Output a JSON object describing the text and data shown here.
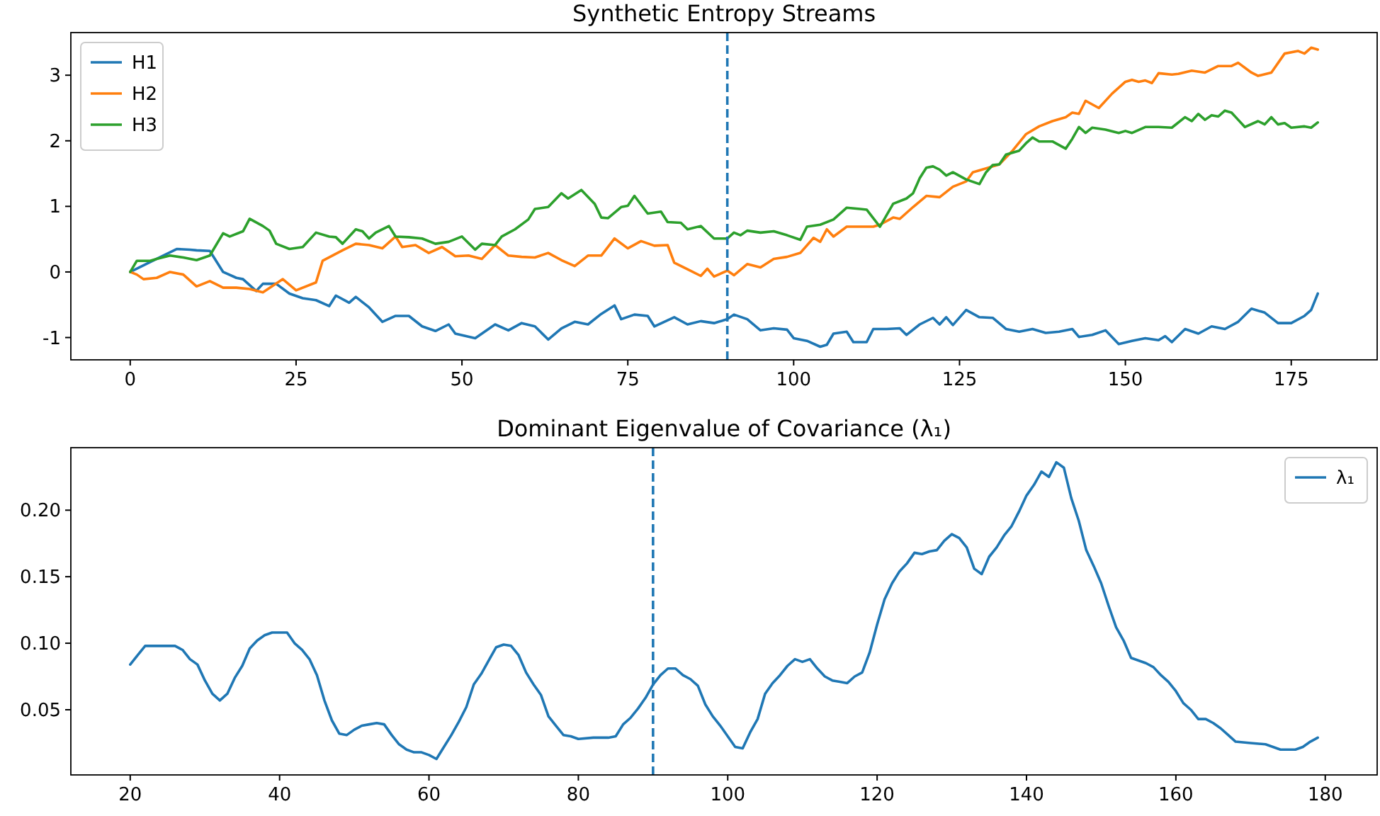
{
  "chart_data": [
    {
      "type": "line",
      "title": "Synthetic Entropy Streams",
      "xlim": [
        -8.95,
        187.95
      ],
      "ylim": [
        -1.34,
        3.65
      ],
      "xticks": [
        0,
        25,
        50,
        75,
        100,
        125,
        150,
        175
      ],
      "yticks": [
        -1,
        0,
        1,
        2,
        3
      ],
      "grid": false,
      "legend": "top left",
      "line_style": "solid",
      "marker": "none",
      "ref_lines": [
        {
          "axis": "x",
          "value": 90,
          "color": "#1f77b4",
          "line_style": "dashed"
        }
      ],
      "series": [
        {
          "name": "H1",
          "color": "#1f77b4",
          "x": [
            0,
            2,
            4,
            7,
            9,
            10,
            12,
            14,
            16,
            17,
            19,
            20,
            22,
            24,
            26,
            28,
            30,
            31,
            33,
            34,
            36,
            38,
            40,
            42,
            44,
            46,
            48,
            49,
            52,
            55,
            57,
            59,
            61,
            63,
            65,
            67,
            69,
            71,
            73,
            74,
            76,
            78,
            79,
            82,
            84,
            86,
            88,
            90,
            91,
            93,
            95,
            97,
            99,
            100,
            102,
            104,
            105,
            106,
            108,
            109,
            111,
            112,
            114,
            116,
            117,
            119,
            121,
            122,
            123,
            124,
            126,
            128,
            130,
            132,
            134,
            136,
            138,
            140,
            142,
            143,
            145,
            147,
            149,
            151,
            153,
            155,
            156,
            157,
            159,
            161,
            163,
            165,
            167,
            169,
            171,
            173,
            175,
            177,
            178,
            179
          ],
          "values": [
            0,
            0.1,
            0.2,
            0.35,
            0.34,
            0.33,
            0.32,
            0,
            -0.09,
            -0.11,
            -0.29,
            -0.18,
            -0.18,
            -0.33,
            -0.4,
            -0.43,
            -0.52,
            -0.36,
            -0.47,
            -0.38,
            -0.54,
            -0.76,
            -0.67,
            -0.67,
            -0.83,
            -0.9,
            -0.8,
            -0.94,
            -1.01,
            -0.8,
            -0.89,
            -0.78,
            -0.83,
            -1.03,
            -0.86,
            -0.76,
            -0.8,
            -0.64,
            -0.51,
            -0.72,
            -0.65,
            -0.67,
            -0.83,
            -0.69,
            -0.8,
            -0.75,
            -0.78,
            -0.72,
            -0.65,
            -0.72,
            -0.89,
            -0.86,
            -0.88,
            -1.01,
            -1.05,
            -1.14,
            -1.11,
            -0.94,
            -0.91,
            -1.07,
            -1.07,
            -0.87,
            -0.87,
            -0.86,
            -0.96,
            -0.8,
            -0.7,
            -0.8,
            -0.69,
            -0.81,
            -0.58,
            -0.69,
            -0.7,
            -0.87,
            -0.91,
            -0.87,
            -0.93,
            -0.91,
            -0.87,
            -0.99,
            -0.96,
            -0.89,
            -1.1,
            -1.05,
            -1.01,
            -1.04,
            -0.98,
            -1.07,
            -0.87,
            -0.94,
            -0.83,
            -0.87,
            -0.76,
            -0.56,
            -0.62,
            -0.78,
            -0.78,
            -0.67,
            -0.58,
            -0.33
          ]
        },
        {
          "name": "H2",
          "color": "#ff7f0e",
          "x": [
            0,
            1,
            2,
            4,
            6,
            8,
            10,
            12,
            14,
            16,
            18,
            20,
            23,
            25,
            28,
            29,
            32,
            34,
            36,
            38,
            40,
            41,
            43,
            45,
            47,
            49,
            51,
            53,
            55,
            57,
            59,
            61,
            63,
            65,
            67,
            69,
            71,
            73,
            75,
            77,
            79,
            81,
            82,
            84,
            86,
            87,
            88,
            90,
            91,
            93,
            95,
            97,
            99,
            101,
            103,
            104,
            105,
            106,
            108,
            110,
            112,
            113,
            115,
            116,
            118,
            120,
            122,
            124,
            126,
            127,
            129,
            131,
            133,
            135,
            137,
            139,
            141,
            142,
            143,
            144,
            146,
            148,
            150,
            151,
            152,
            153,
            154,
            155,
            157,
            158,
            160,
            162,
            164,
            166,
            167,
            169,
            170,
            172,
            174,
            176,
            177,
            178,
            179
          ],
          "values": [
            0,
            -0.04,
            -0.11,
            -0.09,
            0,
            -0.04,
            -0.22,
            -0.14,
            -0.24,
            -0.24,
            -0.26,
            -0.31,
            -0.11,
            -0.28,
            -0.16,
            0.17,
            0.33,
            0.43,
            0.41,
            0.36,
            0.54,
            0.38,
            0.41,
            0.29,
            0.38,
            0.24,
            0.25,
            0.2,
            0.41,
            0.25,
            0.23,
            0.22,
            0.29,
            0.18,
            0.09,
            0.25,
            0.25,
            0.51,
            0.36,
            0.47,
            0.4,
            0.41,
            0.14,
            0.04,
            -0.06,
            0.05,
            -0.07,
            0.02,
            -0.05,
            0.12,
            0.07,
            0.2,
            0.23,
            0.29,
            0.52,
            0.46,
            0.65,
            0.54,
            0.69,
            0.69,
            0.69,
            0.72,
            0.83,
            0.81,
            0.99,
            1.16,
            1.14,
            1.3,
            1.38,
            1.52,
            1.58,
            1.64,
            1.85,
            2.1,
            2.22,
            2.3,
            2.36,
            2.43,
            2.41,
            2.61,
            2.5,
            2.72,
            2.9,
            2.93,
            2.9,
            2.92,
            2.88,
            3.03,
            3.01,
            3.02,
            3.07,
            3.04,
            3.14,
            3.14,
            3.19,
            3.04,
            2.99,
            3.04,
            3.33,
            3.37,
            3.33,
            3.42,
            3.39
          ]
        },
        {
          "name": "H3",
          "color": "#2ca02c",
          "x": [
            0,
            1,
            3,
            4,
            6,
            8,
            10,
            12,
            14,
            15,
            17,
            18,
            20,
            21,
            22,
            24,
            26,
            28,
            30,
            31,
            32,
            34,
            35,
            36,
            37,
            39,
            40,
            42,
            44,
            46,
            48,
            50,
            52,
            53,
            55,
            56,
            58,
            60,
            61,
            63,
            65,
            66,
            68,
            70,
            71,
            72,
            74,
            75,
            76,
            78,
            80,
            81,
            83,
            84,
            86,
            88,
            90,
            91,
            92,
            93,
            95,
            97,
            99,
            101,
            102,
            104,
            106,
            108,
            110,
            111,
            113,
            115,
            117,
            118,
            119,
            120,
            121,
            122,
            123,
            124,
            126,
            128,
            129,
            130,
            131,
            132,
            134,
            135,
            136,
            137,
            139,
            141,
            142,
            143,
            144,
            145,
            147,
            149,
            150,
            151,
            153,
            155,
            157,
            159,
            160,
            161,
            162,
            163,
            164,
            165,
            166,
            167,
            168,
            170,
            171,
            172,
            173,
            174,
            175,
            177,
            178,
            179
          ],
          "values": [
            0,
            0.17,
            0.17,
            0.2,
            0.25,
            0.22,
            0.18,
            0.25,
            0.59,
            0.54,
            0.62,
            0.81,
            0.7,
            0.63,
            0.43,
            0.35,
            0.38,
            0.6,
            0.54,
            0.53,
            0.43,
            0.65,
            0.62,
            0.51,
            0.6,
            0.7,
            0.54,
            0.53,
            0.51,
            0.43,
            0.46,
            0.54,
            0.34,
            0.43,
            0.41,
            0.54,
            0.65,
            0.8,
            0.96,
            0.99,
            1.2,
            1.12,
            1.25,
            1.04,
            0.83,
            0.82,
            0.99,
            1.01,
            1.16,
            0.89,
            0.92,
            0.76,
            0.75,
            0.65,
            0.7,
            0.51,
            0.51,
            0.6,
            0.56,
            0.63,
            0.6,
            0.62,
            0.56,
            0.49,
            0.69,
            0.72,
            0.8,
            0.98,
            0.96,
            0.95,
            0.69,
            1.04,
            1.12,
            1.2,
            1.43,
            1.59,
            1.61,
            1.56,
            1.47,
            1.52,
            1.41,
            1.34,
            1.52,
            1.63,
            1.64,
            1.79,
            1.85,
            1.96,
            2.05,
            1.99,
            1.99,
            1.88,
            2.03,
            2.21,
            2.12,
            2.2,
            2.17,
            2.12,
            2.15,
            2.12,
            2.21,
            2.21,
            2.2,
            2.36,
            2.3,
            2.41,
            2.32,
            2.39,
            2.37,
            2.46,
            2.43,
            2.32,
            2.21,
            2.3,
            2.25,
            2.36,
            2.25,
            2.27,
            2.2,
            2.22,
            2.2,
            2.28
          ]
        }
      ]
    },
    {
      "type": "line",
      "title": "Dominant Eigenvalue of Covariance (λ₁)",
      "xlim": [
        12.05,
        186.95
      ],
      "ylim": [
        0.001,
        0.247
      ],
      "xticks": [
        20,
        40,
        60,
        80,
        100,
        120,
        140,
        160,
        180
      ],
      "yticks": [
        0.05,
        {
          "value": 0.1,
          "label": "0.10"
        },
        0.15,
        {
          "value": 0.2,
          "label": "0.20"
        }
      ],
      "grid": false,
      "legend": "top right",
      "line_style": "solid",
      "marker": "none",
      "ref_lines": [
        {
          "axis": "x",
          "value": 90,
          "color": "#1f77b4",
          "line_style": "dashed"
        }
      ],
      "series": [
        {
          "name": "λ₁",
          "color": "#1f77b4",
          "x": [
            20,
            21,
            22,
            24,
            26,
            27,
            28,
            29,
            30,
            31,
            32,
            33,
            34,
            35,
            36,
            37,
            38,
            39,
            40,
            41,
            42,
            43,
            44,
            45,
            46,
            47,
            48,
            49,
            50,
            51,
            52,
            53,
            54,
            55,
            56,
            57,
            58,
            59,
            60,
            61,
            62,
            63,
            64,
            65,
            66,
            67,
            68,
            69,
            70,
            71,
            72,
            73,
            74,
            75,
            76,
            77,
            78,
            79,
            80,
            82,
            84,
            85,
            86,
            87,
            88,
            89,
            90,
            91,
            92,
            93,
            94,
            95,
            96,
            97,
            98,
            99,
            100,
            101,
            102,
            103,
            104,
            105,
            106,
            107,
            108,
            109,
            110,
            111,
            112,
            113,
            114,
            115,
            116,
            117,
            118,
            119,
            120,
            121,
            122,
            123,
            124,
            125,
            126,
            127,
            128,
            129,
            130,
            131,
            132,
            133,
            134,
            135,
            136,
            137,
            138,
            139,
            140,
            141,
            142,
            143,
            144,
            145,
            146,
            147,
            148,
            149,
            150,
            151,
            152,
            153,
            154,
            155,
            156,
            157,
            158,
            159,
            160,
            161,
            162,
            163,
            164,
            165,
            166,
            167,
            168,
            170,
            172,
            174,
            176,
            177,
            178,
            179
          ],
          "values": [
            0.084,
            0.091,
            0.098,
            0.098,
            0.098,
            0.095,
            0.088,
            0.084,
            0.072,
            0.062,
            0.057,
            0.062,
            0.074,
            0.083,
            0.096,
            0.102,
            0.106,
            0.108,
            0.108,
            0.108,
            0.1,
            0.095,
            0.088,
            0.076,
            0.057,
            0.042,
            0.032,
            0.031,
            0.035,
            0.038,
            0.039,
            0.04,
            0.039,
            0.031,
            0.024,
            0.02,
            0.018,
            0.018,
            0.016,
            0.013,
            0.022,
            0.031,
            0.041,
            0.052,
            0.069,
            0.077,
            0.087,
            0.097,
            0.099,
            0.098,
            0.091,
            0.078,
            0.069,
            0.061,
            0.045,
            0.038,
            0.031,
            0.03,
            0.028,
            0.029,
            0.029,
            0.03,
            0.039,
            0.044,
            0.051,
            0.059,
            0.069,
            0.076,
            0.081,
            0.081,
            0.076,
            0.073,
            0.068,
            0.054,
            0.045,
            0.038,
            0.03,
            0.022,
            0.021,
            0.033,
            0.043,
            0.062,
            0.07,
            0.076,
            0.083,
            0.088,
            0.086,
            0.088,
            0.081,
            0.075,
            0.072,
            0.071,
            0.07,
            0.075,
            0.078,
            0.093,
            0.114,
            0.133,
            0.145,
            0.154,
            0.16,
            0.168,
            0.167,
            0.169,
            0.17,
            0.177,
            0.182,
            0.179,
            0.172,
            0.156,
            0.152,
            0.165,
            0.172,
            0.181,
            0.188,
            0.199,
            0.211,
            0.219,
            0.229,
            0.225,
            0.236,
            0.232,
            0.209,
            0.192,
            0.17,
            0.158,
            0.145,
            0.128,
            0.112,
            0.102,
            0.089,
            0.087,
            0.085,
            0.082,
            0.076,
            0.071,
            0.064,
            0.055,
            0.05,
            0.043,
            0.043,
            0.04,
            0.036,
            0.031,
            0.026,
            0.025,
            0.024,
            0.02,
            0.02,
            0.022,
            0.026,
            0.029
          ]
        }
      ]
    }
  ]
}
